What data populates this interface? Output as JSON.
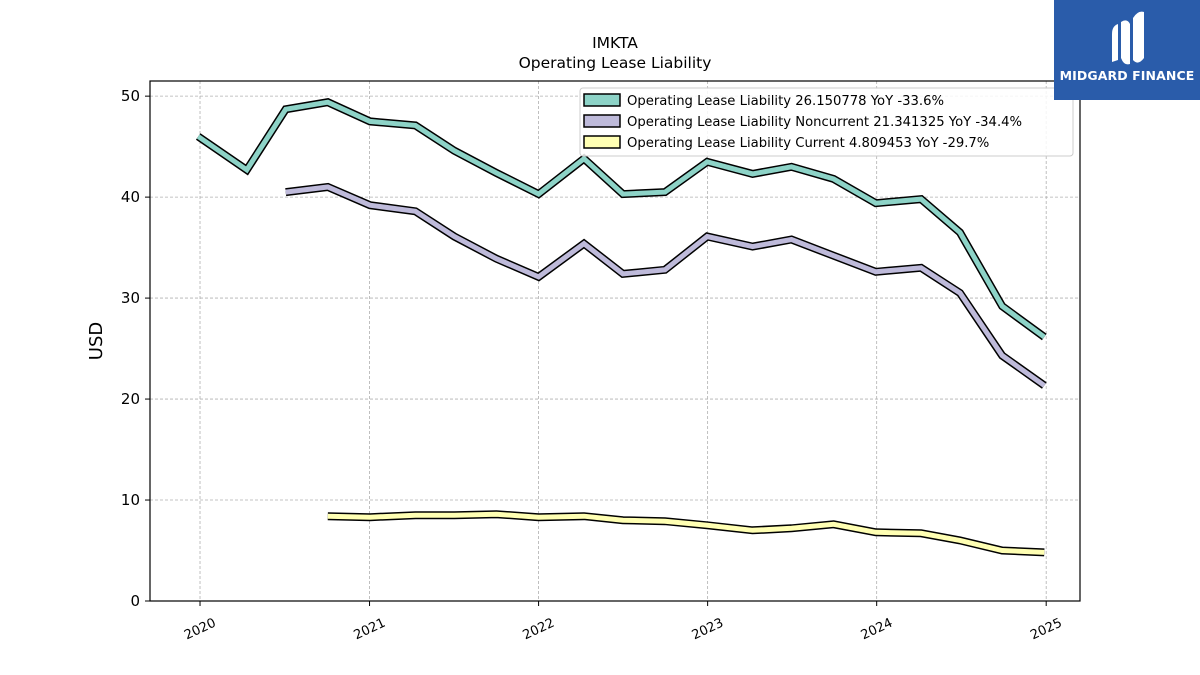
{
  "brand": {
    "name": "MIDGARD FINANCE",
    "background": "#2a5caa"
  },
  "chart_data": {
    "type": "line",
    "title": "IMKTA",
    "subtitle": "Operating Lease Liability",
    "ylabel": "USD",
    "xlabel": "",
    "ylim": [
      0,
      51.5
    ],
    "xlim": [
      "2019-09-15",
      "2025-03-15"
    ],
    "yticks": [
      0,
      10,
      20,
      30,
      40,
      50
    ],
    "xticks": [
      "2020",
      "2021",
      "2022",
      "2023",
      "2024",
      "2025"
    ],
    "grid": true,
    "legend_position": "top-right",
    "series": [
      {
        "name": "Operating Lease Liability",
        "legend_label": "Operating Lease Liability  26.150778 YoY -33.6%",
        "color": "#8dd3c7",
        "points": [
          [
            "2019-12-28",
            46.0
          ],
          [
            "2020-04-11",
            42.7
          ],
          [
            "2020-07-04",
            48.7
          ],
          [
            "2020-10-03",
            49.4
          ],
          [
            "2021-01-02",
            47.5
          ],
          [
            "2021-04-10",
            47.1
          ],
          [
            "2021-07-03",
            44.6
          ],
          [
            "2021-10-02",
            42.4
          ],
          [
            "2022-01-01",
            40.3
          ],
          [
            "2022-04-09",
            43.8
          ],
          [
            "2022-07-02",
            40.3
          ],
          [
            "2022-10-01",
            40.5
          ],
          [
            "2022-12-31",
            43.5
          ],
          [
            "2023-04-08",
            42.3
          ],
          [
            "2023-07-01",
            43.0
          ],
          [
            "2023-09-30",
            41.8
          ],
          [
            "2023-12-30",
            39.4
          ],
          [
            "2024-04-06",
            39.8
          ],
          [
            "2024-06-29",
            36.5
          ],
          [
            "2024-09-28",
            29.2
          ],
          [
            "2024-12-28",
            26.150778
          ]
        ]
      },
      {
        "name": "Operating Lease Liability Noncurrent",
        "legend_label": "Operating Lease Liability Noncurrent  21.341325 YoY -34.4%",
        "color": "#bebada",
        "points": [
          [
            "2020-07-04",
            40.5
          ],
          [
            "2020-10-03",
            41.0
          ],
          [
            "2021-01-02",
            39.2
          ],
          [
            "2021-04-10",
            38.6
          ],
          [
            "2021-07-03",
            36.1
          ],
          [
            "2021-10-02",
            33.9
          ],
          [
            "2022-01-01",
            32.1
          ],
          [
            "2022-04-09",
            35.4
          ],
          [
            "2022-07-02",
            32.4
          ],
          [
            "2022-10-01",
            32.8
          ],
          [
            "2022-12-31",
            36.1
          ],
          [
            "2023-04-08",
            35.1
          ],
          [
            "2023-07-01",
            35.8
          ],
          [
            "2023-09-30",
            34.2
          ],
          [
            "2023-12-30",
            32.6
          ],
          [
            "2024-04-06",
            33.0
          ],
          [
            "2024-06-29",
            30.5
          ],
          [
            "2024-09-28",
            24.3
          ],
          [
            "2024-12-28",
            21.341325
          ]
        ]
      },
      {
        "name": "Operating Lease Liability Current",
        "legend_label": "Operating Lease Liability Current  4.809453 YoY -29.7%",
        "color": "#ffffb3",
        "points": [
          [
            "2020-10-03",
            8.4
          ],
          [
            "2021-01-02",
            8.3
          ],
          [
            "2021-04-10",
            8.5
          ],
          [
            "2021-07-03",
            8.5
          ],
          [
            "2021-10-02",
            8.6
          ],
          [
            "2022-01-01",
            8.3
          ],
          [
            "2022-04-09",
            8.4
          ],
          [
            "2022-07-02",
            8.0
          ],
          [
            "2022-10-01",
            7.9
          ],
          [
            "2022-12-31",
            7.5
          ],
          [
            "2023-04-08",
            7.0
          ],
          [
            "2023-07-01",
            7.2
          ],
          [
            "2023-09-30",
            7.6
          ],
          [
            "2023-12-30",
            6.8
          ],
          [
            "2024-04-06",
            6.7
          ],
          [
            "2024-06-29",
            6.0
          ],
          [
            "2024-09-28",
            5.0
          ],
          [
            "2024-12-28",
            4.809453
          ]
        ]
      }
    ]
  }
}
